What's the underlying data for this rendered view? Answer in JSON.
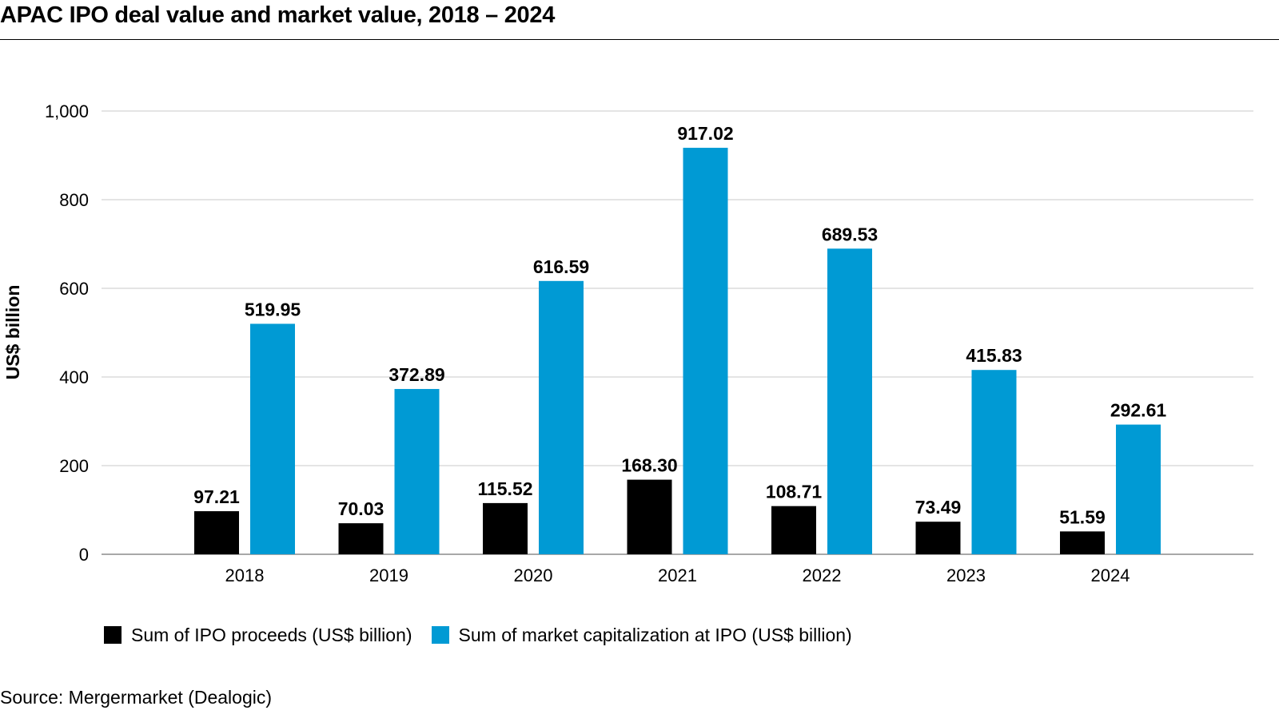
{
  "title": "APAC IPO deal value and market value, 2018 – 2024",
  "source": "Source: Mergermarket (Dealogic)",
  "chart_data": {
    "type": "bar",
    "title": "APAC IPO deal value and market value, 2018 – 2024",
    "xlabel": "",
    "ylabel": "US$ billion",
    "ylim": [
      0,
      1000
    ],
    "yticks": [
      0,
      200,
      400,
      600,
      800,
      1000
    ],
    "ytick_labels": [
      "0",
      "200",
      "400",
      "600",
      "800",
      "1,000"
    ],
    "grid": true,
    "legend_position": "bottom-left",
    "categories": [
      "2018",
      "2019",
      "2020",
      "2021",
      "2022",
      "2023",
      "2024"
    ],
    "series": [
      {
        "name": "Sum of IPO proceeds (US$ billion)",
        "color": "#000000",
        "values": [
          97.21,
          70.03,
          115.52,
          168.3,
          108.71,
          73.49,
          51.59
        ],
        "labels": [
          "97.21",
          "70.03",
          "115.52",
          "168.30",
          "108.71",
          "73.49",
          "51.59"
        ]
      },
      {
        "name": "Sum of market capitalization at IPO (US$ billion)",
        "color": "#009AD4",
        "values": [
          519.95,
          372.89,
          616.59,
          917.02,
          689.53,
          415.83,
          292.61
        ],
        "labels": [
          "519.95",
          "372.89",
          "616.59",
          "917.02",
          "689.53",
          "415.83",
          "292.61"
        ]
      }
    ]
  }
}
